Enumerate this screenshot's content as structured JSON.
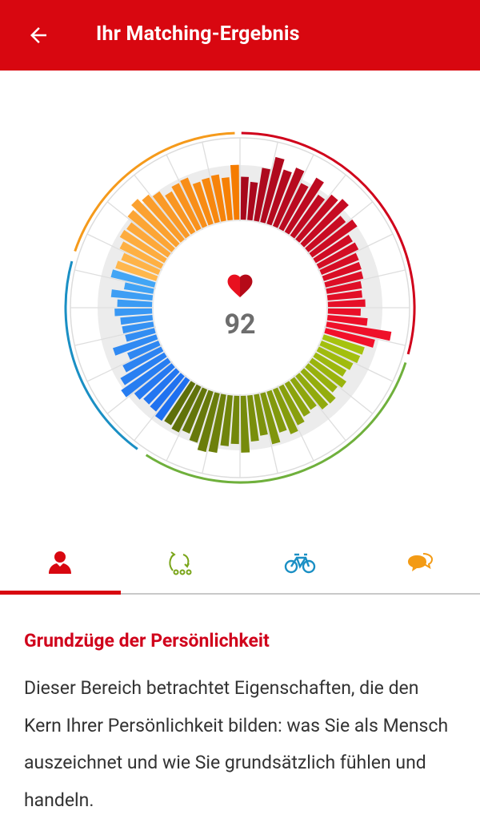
{
  "header": {
    "title": "Ihr Matching-Ergebnis",
    "back_icon": "arrow-left-icon"
  },
  "score": {
    "value": "92",
    "icon": "heart-icon"
  },
  "colors": {
    "brand": "#d80710",
    "red": "#d0021b",
    "green": "#7a9a10",
    "blue": "#1e88e5",
    "orange": "#f59a1b"
  },
  "chart_data": {
    "type": "radial-bar",
    "segments": [
      {
        "name": "Grundzüge der Persönlichkeit",
        "color_from": "#a7081c",
        "color_to": "#f2102a",
        "values": [
          0.62,
          0.55,
          0.78,
          0.98,
          0.83,
          0.92,
          0.74,
          0.92,
          0.72,
          0.84,
          0.9,
          0.7,
          0.8,
          0.62,
          0.64,
          0.58,
          0.57,
          0.56,
          0.51,
          0.5,
          0.54,
          0.47,
          0.58,
          0.96,
          0.74
        ]
      },
      {
        "name": "Lebensweise",
        "color_from": "#5e6f0a",
        "color_to": "#a6c20e",
        "values": [
          0.62,
          0.6,
          0.55,
          0.51,
          0.6,
          0.54,
          0.63,
          0.62,
          0.52,
          0.55,
          0.62,
          0.7,
          0.62,
          0.76,
          0.6,
          0.67,
          0.83,
          0.7,
          0.74,
          0.86,
          0.88,
          0.78,
          0.69,
          0.74,
          0.7
        ]
      },
      {
        "name": "Freizeit",
        "color_from": "#1e6ff0",
        "color_to": "#42a5f5",
        "values": [
          0.72,
          0.66,
          0.65,
          0.7,
          0.83,
          0.74,
          0.62,
          0.48,
          0.66,
          0.43,
          0.45,
          0.46,
          0.54,
          0.5,
          0.6,
          0.42,
          0.65
        ]
      },
      {
        "name": "Kommunikation",
        "color_from": "#f57c00",
        "color_to": "#ffb74d",
        "values": [
          0.62,
          0.58,
          0.67,
          0.75,
          0.73,
          0.83,
          0.9,
          0.84,
          0.78,
          0.68,
          0.74,
          0.76,
          0.64,
          0.66,
          0.68,
          0.62,
          0.8
        ]
      }
    ]
  },
  "tabs": [
    {
      "name": "personality",
      "icon": "person-icon",
      "color": "#d80710",
      "active": true
    },
    {
      "name": "lifestyle",
      "icon": "flow-arrows-icon",
      "color": "#7aa51a",
      "active": false
    },
    {
      "name": "leisure",
      "icon": "bicycle-icon",
      "color": "#1a8fc4",
      "active": false
    },
    {
      "name": "communication",
      "icon": "speech-bubbles-icon",
      "color": "#f39b15",
      "active": false
    }
  ],
  "section": {
    "title": "Grundzüge der Persönlichkeit",
    "text": "Dieser Bereich betrachtet Eigenschaften, die den Kern Ihrer Persönlichkeit bilden: was Sie als Mensch auszeichnet und wie Sie grundsätzlich fühlen und handeln."
  }
}
